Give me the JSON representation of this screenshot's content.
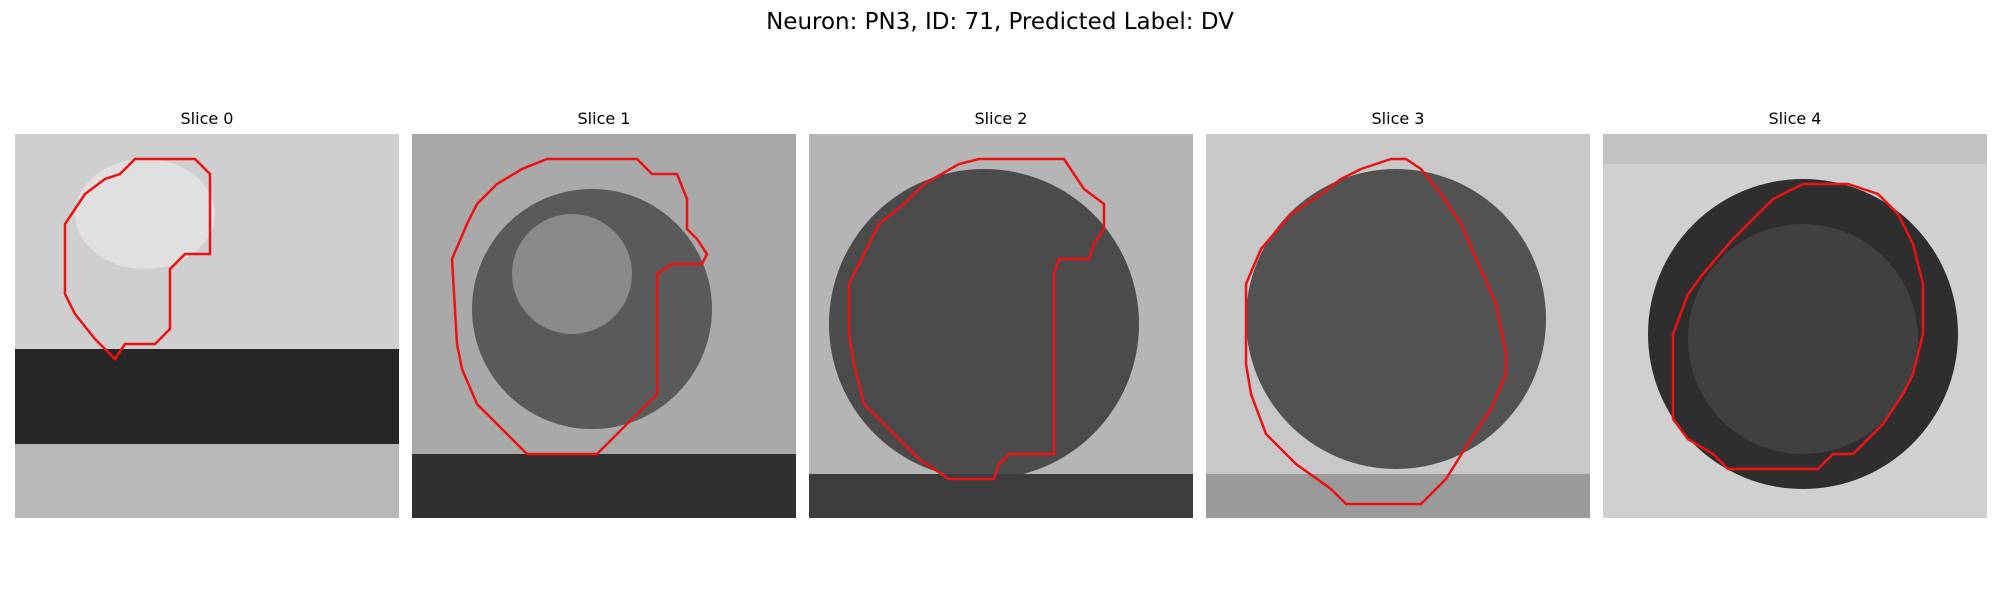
{
  "figure": {
    "title": "Neuron: PN3, ID: 71, Predicted Label: DV",
    "panels": [
      {
        "title": "Slice 0",
        "contour_color": "#ee1111",
        "region": "small rounded blob in upper-left with dark horizontal band below"
      },
      {
        "title": "Slice 1",
        "contour_color": "#ee1111",
        "region": "ring-shaped cell outline with notch on right"
      },
      {
        "title": "Slice 2",
        "contour_color": "#ee1111",
        "region": "large dark rounded cell with notch on right"
      },
      {
        "title": "Slice 3",
        "contour_color": "#ee1111",
        "region": "large dark circular cell"
      },
      {
        "title": "Slice 4",
        "contour_color": "#ee1111",
        "region": "dark circular cell surrounded by bright rim"
      }
    ]
  },
  "colors": {
    "contour": "#ee1111",
    "background": "#ffffff"
  }
}
